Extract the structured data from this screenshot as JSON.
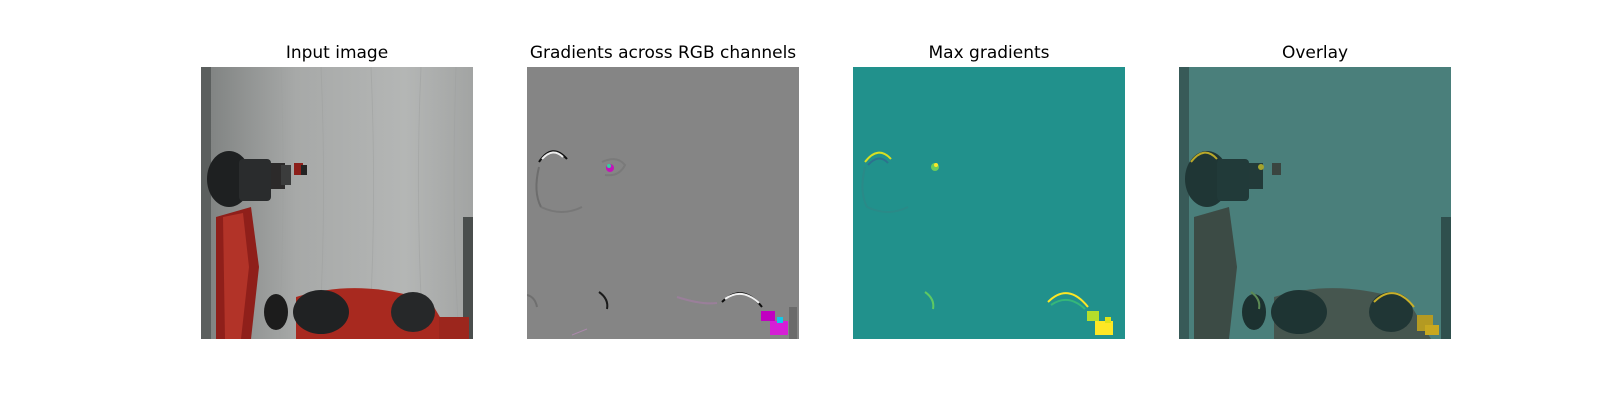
{
  "figure": {
    "panels": [
      {
        "title": "Input image",
        "content": "photo of a red robot arm in front of a white sheet",
        "image": "robot-photo"
      },
      {
        "title": "Gradients across RGB channels",
        "content": "gray map with colored gradient edges",
        "image": "rgb-gradient-map"
      },
      {
        "title": "Max gradients",
        "content": "teal saliency map with yellow highlights",
        "image": "max-gradient-map"
      },
      {
        "title": "Overlay",
        "content": "photo tinted teal with yellow highlights",
        "image": "overlay-map"
      }
    ]
  }
}
